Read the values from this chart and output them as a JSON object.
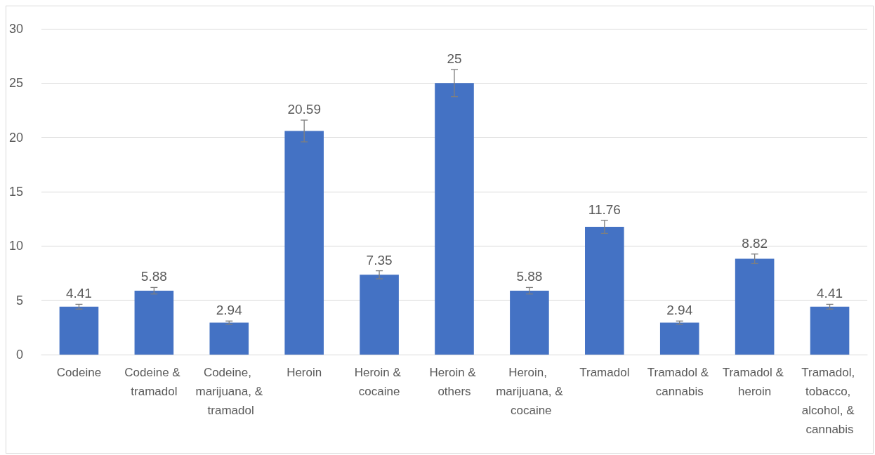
{
  "chart_data": {
    "type": "bar",
    "categories": [
      "Codeine",
      "Codeine & tramadol",
      "Codeine, marijuana, & tramadol",
      "Heroin",
      "Heroin & cocaine",
      "Heroin & others",
      "Heroin, marijuana, & cocaine",
      "Tramadol",
      "Tramadol & cannabis",
      "Tramadol & heroin",
      "Tramadol, tobacco, alcohol, & cannabis"
    ],
    "values": [
      4.41,
      5.88,
      2.94,
      20.59,
      7.35,
      25,
      5.88,
      11.76,
      2.94,
      8.82,
      4.41
    ],
    "errors": [
      0.22,
      0.3,
      0.15,
      1.0,
      0.37,
      1.25,
      0.3,
      0.6,
      0.15,
      0.44,
      0.22
    ],
    "color": "#4472c4",
    "ylim": [
      0,
      30
    ],
    "yticks": [
      0,
      5,
      10,
      15,
      20,
      25,
      30
    ],
    "grid": "y",
    "data_labels": true
  }
}
